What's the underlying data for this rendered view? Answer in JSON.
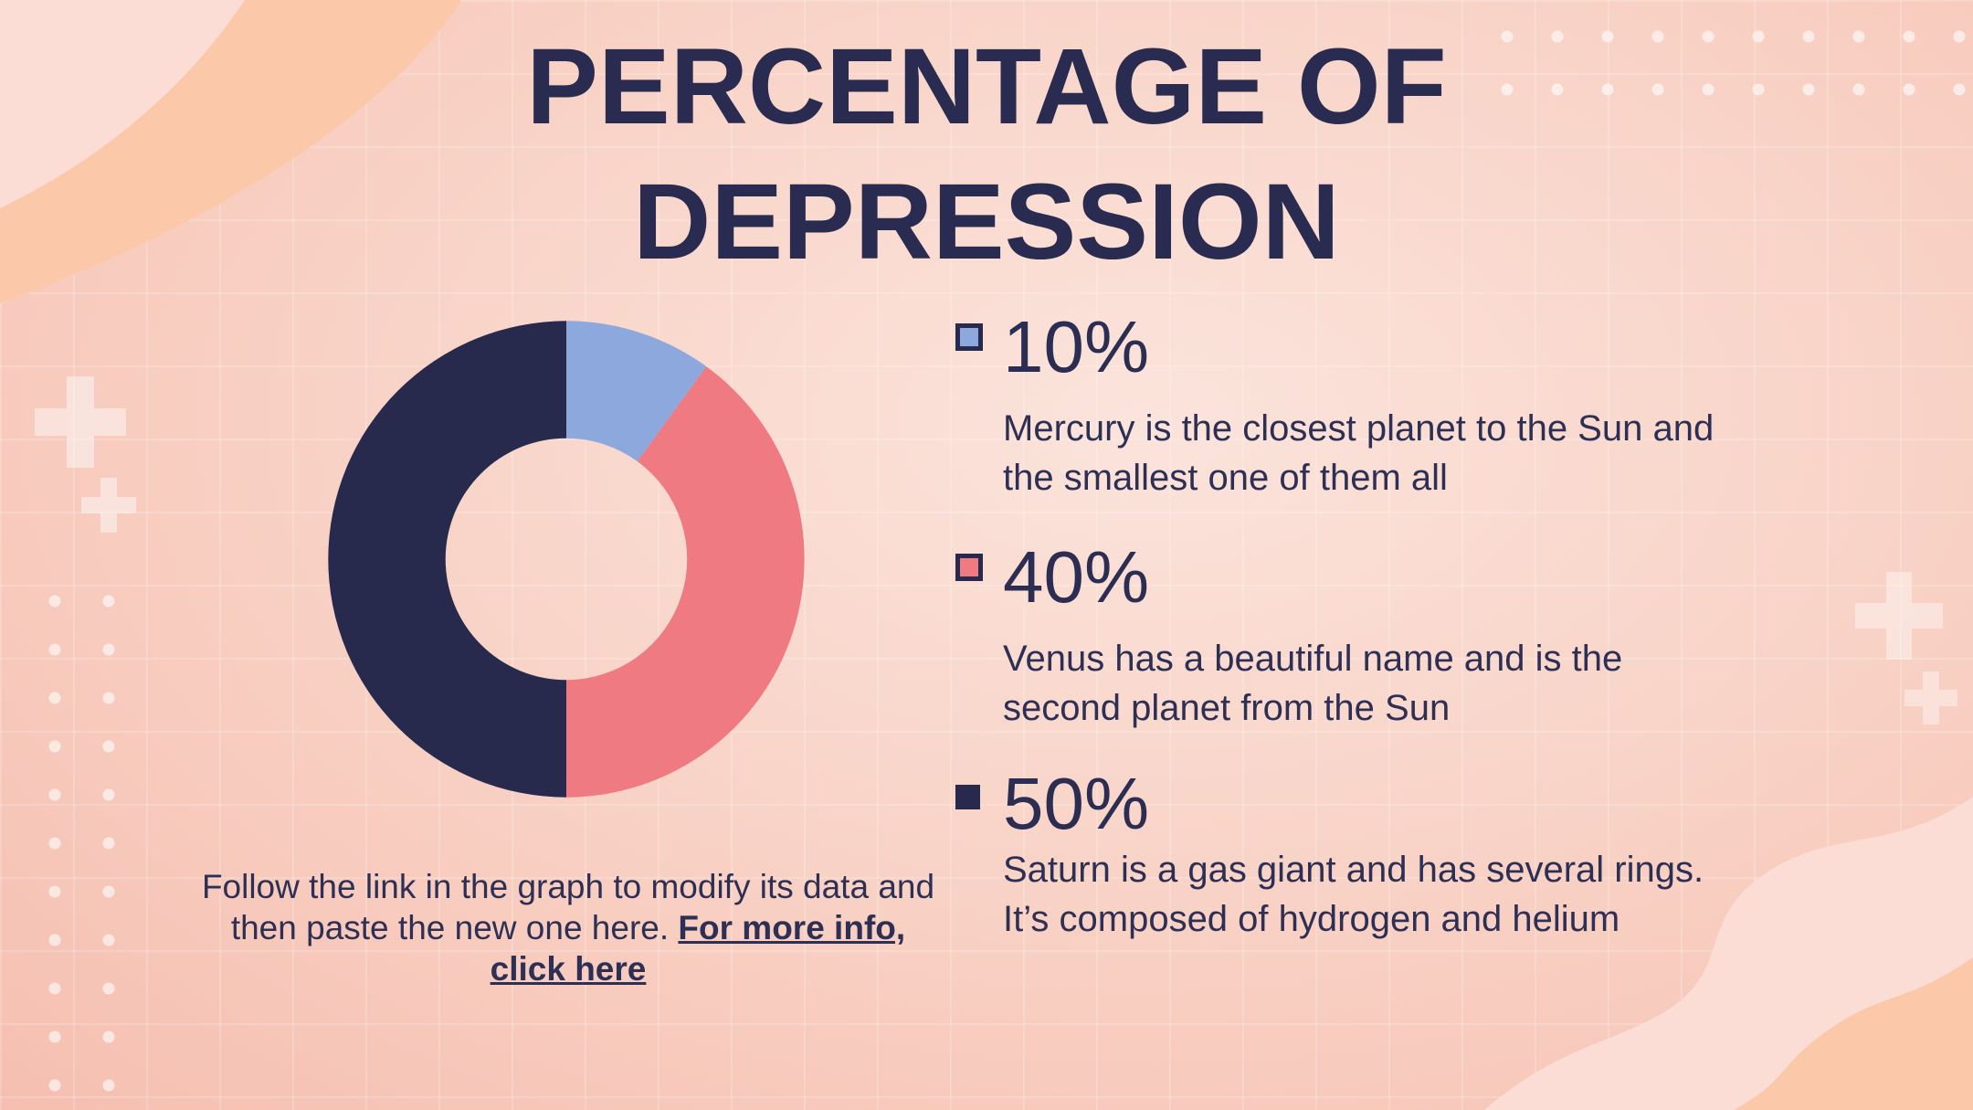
{
  "slide": {
    "title": "PERCENTAGE OF DEPRESSION",
    "legend": [
      {
        "value": "10%",
        "description": "Mercury is the closest planet to the Sun and the smallest one of them all"
      },
      {
        "value": "40%",
        "description": "Venus has a beautiful name and is the second planet from the Sun"
      },
      {
        "value": "50%",
        "description": "Saturn is a gas giant and has several rings. It’s composed of hydrogen and helium"
      }
    ],
    "caption": {
      "text": "Follow the link in the graph to modify its data and then paste the new one here. ",
      "link_text": "For more info, click here"
    },
    "colors": {
      "navy": "#272a4c",
      "salmon": "#ef7a82",
      "blue": "#8ca8dd",
      "text": "#2d3054",
      "background_light": "#fbe4dc",
      "background_deep": "#f5bfb1",
      "accent_peach": "#fbc9a9",
      "accent_light_pink": "#fbddd6"
    }
  },
  "chart_data": {
    "type": "pie",
    "subtype": "donut",
    "title": "PERCENTAGE OF DEPRESSION",
    "labels": [
      "Mercury",
      "Venus",
      "Saturn"
    ],
    "values": [
      10,
      40,
      50
    ],
    "display_values": [
      "10%",
      "40%",
      "50%"
    ],
    "colors": [
      "#8ca8dd",
      "#ef7a82",
      "#272a4c"
    ],
    "start_angle_deg": 0,
    "direction": "clockwise",
    "inner_radius_ratio": 0.507,
    "legend_position": "right",
    "data_labels": "none"
  }
}
